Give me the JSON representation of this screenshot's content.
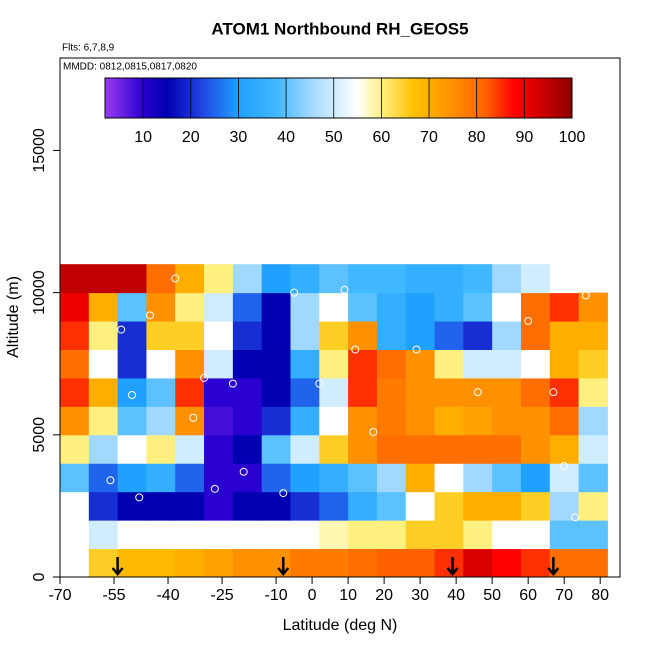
{
  "chart_data": {
    "type": "heatmap",
    "title": "ATOM1 Northbound RH_GEOS5",
    "subtitle": "Flts: 6,7,8,9",
    "annotation": "MMDD: 0812,0815,0817,0820",
    "x_label": "Latitude (deg N)",
    "y_label": "Altitude (m)",
    "xlim": [
      -70,
      85.5
    ],
    "ylim": [
      0,
      18250
    ],
    "xticks": [
      -70,
      -55,
      -40,
      -25,
      -10,
      0,
      10,
      20,
      30,
      40,
      50,
      60,
      70,
      80
    ],
    "yticks": [
      0,
      5000,
      10000,
      15000
    ],
    "x": [
      -66,
      -58,
      -50,
      -42,
      -34,
      -26,
      -18,
      -10,
      -2,
      6,
      14,
      22,
      30,
      38,
      46,
      54,
      62,
      70,
      78
    ],
    "y": [
      500,
      1500,
      2500,
      3500,
      4500,
      5500,
      6500,
      7500,
      8500,
      9500,
      10500
    ],
    "values": [
      [
        null,
        65,
        68,
        68,
        70,
        72,
        75,
        75,
        78,
        78,
        80,
        82,
        82,
        85,
        92,
        88,
        85,
        80,
        80
      ],
      [
        null,
        50,
        55,
        55,
        55,
        55,
        55,
        55,
        55,
        58,
        60,
        60,
        65,
        65,
        60,
        55,
        55,
        40,
        40
      ],
      [
        null,
        20,
        15,
        15,
        15,
        10,
        15,
        15,
        20,
        25,
        35,
        40,
        55,
        65,
        70,
        70,
        65,
        45,
        60
      ],
      [
        40,
        25,
        30,
        35,
        25,
        10,
        10,
        25,
        30,
        35,
        40,
        45,
        70,
        55,
        45,
        40,
        30,
        50,
        40
      ],
      [
        60,
        45,
        55,
        60,
        50,
        10,
        15,
        40,
        50,
        65,
        75,
        80,
        80,
        80,
        80,
        80,
        75,
        70,
        50
      ],
      [
        75,
        60,
        40,
        45,
        75,
        8,
        10,
        20,
        35,
        55,
        75,
        78,
        75,
        70,
        72,
        75,
        75,
        80,
        45
      ],
      [
        85,
        70,
        30,
        40,
        85,
        10,
        10,
        15,
        25,
        50,
        85,
        78,
        75,
        75,
        75,
        75,
        80,
        85,
        60
      ],
      [
        80,
        55,
        20,
        55,
        75,
        50,
        15,
        15,
        35,
        60,
        85,
        80,
        75,
        60,
        50,
        50,
        55,
        70,
        65
      ],
      [
        85,
        60,
        20,
        65,
        65,
        55,
        20,
        15,
        45,
        65,
        75,
        35,
        30,
        25,
        20,
        45,
        80,
        70,
        70
      ],
      [
        90,
        70,
        40,
        75,
        60,
        50,
        25,
        15,
        45,
        55,
        40,
        35,
        30,
        35,
        40,
        55,
        80,
        85,
        75
      ],
      [
        95,
        95,
        95,
        80,
        70,
        60,
        45,
        30,
        35,
        40,
        38,
        38,
        35,
        35,
        38,
        45,
        50,
        55,
        null
      ]
    ],
    "colorbar_lim": [
      2,
      100
    ],
    "colorbar_ticks": [
      10,
      20,
      30,
      40,
      50,
      60,
      70,
      80,
      90,
      100
    ],
    "colorscale": [
      [
        2,
        "#9a3cf0"
      ],
      [
        10,
        "#2a00d0"
      ],
      [
        15,
        "#0000b0"
      ],
      [
        22,
        "#2040e0"
      ],
      [
        30,
        "#20a0ff"
      ],
      [
        38,
        "#40b8ff"
      ],
      [
        45,
        "#a0d8ff"
      ],
      [
        55,
        "#ffffff"
      ],
      [
        60,
        "#fff080"
      ],
      [
        67,
        "#ffc000"
      ],
      [
        75,
        "#ff9000"
      ],
      [
        82,
        "#ff6000"
      ],
      [
        88,
        "#ff0000"
      ],
      [
        95,
        "#c00000"
      ],
      [
        100,
        "#8b0000"
      ]
    ],
    "points": {
      "x": [
        -56,
        -53,
        -50,
        -48,
        -45,
        -38,
        -33,
        -30,
        -27,
        -22,
        -19,
        -8,
        -5,
        2,
        9,
        12,
        17,
        29,
        35,
        46,
        52,
        60,
        67,
        70,
        73,
        76
      ],
      "y": [
        3400,
        8700,
        6400,
        2800,
        9200,
        10500,
        5600,
        7000,
        3100,
        6800,
        3700,
        2950,
        10000,
        6800,
        10100,
        8000,
        5100,
        8000,
        3500,
        6500,
        9200,
        9000,
        6500,
        3900,
        2100,
        9900
      ]
    },
    "arrows_x": [
      -54,
      -8,
      39,
      67
    ]
  }
}
